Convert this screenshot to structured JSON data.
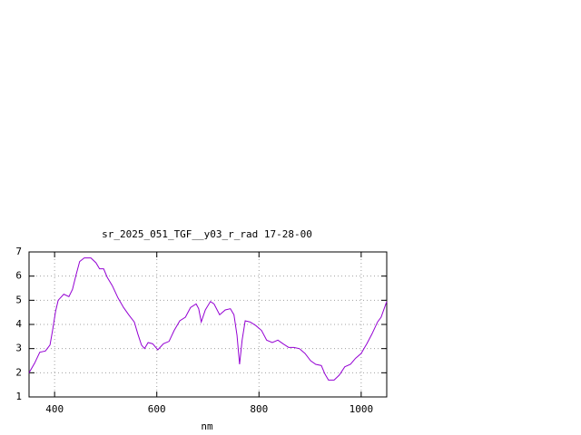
{
  "chart_data": {
    "type": "line",
    "title": "sr_2025_051_TGF__y03_r_rad 17-28-00",
    "x_label": "nm",
    "x": [
      350,
      361,
      371,
      382,
      391,
      396,
      402,
      407,
      418,
      428,
      435,
      442,
      449,
      458,
      471,
      481,
      488,
      496,
      503,
      513,
      524,
      535,
      545,
      556,
      563,
      570,
      576,
      583,
      592,
      602,
      613,
      624,
      634,
      645,
      656,
      666,
      677,
      682,
      687,
      695,
      705,
      712,
      723,
      734,
      744,
      751,
      757,
      762,
      767,
      773,
      783,
      794,
      805,
      815,
      826,
      837,
      847,
      858,
      868,
      879,
      890,
      901,
      911,
      922,
      929,
      936,
      947,
      957,
      968,
      979,
      989,
      1000,
      1011,
      1021,
      1032,
      1039,
      1050
    ],
    "series": [
      {
        "color": "#9400d3",
        "values": [
          2.0,
          2.4,
          2.85,
          2.9,
          3.15,
          3.75,
          4.55,
          5.0,
          5.25,
          5.15,
          5.45,
          6.05,
          6.6,
          6.75,
          6.75,
          6.55,
          6.3,
          6.3,
          5.95,
          5.6,
          5.1,
          4.7,
          4.4,
          4.1,
          3.6,
          3.15,
          3.0,
          3.25,
          3.2,
          2.95,
          3.2,
          3.3,
          3.75,
          4.15,
          4.3,
          4.7,
          4.85,
          4.65,
          4.1,
          4.6,
          4.95,
          4.85,
          4.4,
          4.6,
          4.65,
          4.4,
          3.55,
          2.35,
          3.35,
          4.15,
          4.1,
          3.95,
          3.75,
          3.35,
          3.25,
          3.35,
          3.2,
          3.05,
          3.05,
          3.0,
          2.8,
          2.5,
          2.35,
          2.3,
          1.95,
          1.7,
          1.7,
          1.9,
          2.25,
          2.35,
          2.6,
          2.8,
          3.2,
          3.6,
          4.1,
          4.3,
          4.95
        ]
      }
    ],
    "xlim": [
      350,
      1050
    ],
    "xticks": [
      400,
      600,
      800,
      1000
    ],
    "ylim": [
      1,
      7
    ],
    "yticks": [
      1,
      2,
      3,
      4,
      5,
      6,
      7
    ],
    "grid": true
  }
}
